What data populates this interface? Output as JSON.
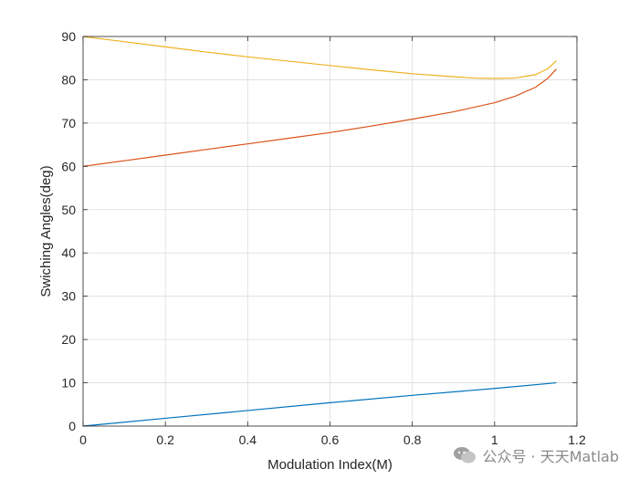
{
  "chart_data": {
    "type": "line",
    "title": "",
    "xlabel": "Modulation Index(M)",
    "ylabel": "Swiching Angles(deg)",
    "xlim": [
      0,
      1.2
    ],
    "ylim": [
      0,
      90
    ],
    "xticks": [
      0,
      0.2,
      0.4,
      0.6,
      0.8,
      1,
      1.2
    ],
    "xtick_labels": [
      "0",
      "0.2",
      "0.4",
      "0.6",
      "0.8",
      "1",
      "1.2"
    ],
    "yticks": [
      0,
      10,
      20,
      30,
      40,
      50,
      60,
      70,
      80,
      90
    ],
    "ytick_labels": [
      "0",
      "10",
      "20",
      "30",
      "40",
      "50",
      "60",
      "70",
      "80",
      "90"
    ],
    "grid": true,
    "colors": [
      "#0072BD",
      "#D95319",
      "#EDB120"
    ],
    "series": [
      {
        "x": [
          0,
          0.2,
          0.4,
          0.6,
          0.8,
          1.0,
          1.15
        ],
        "values": [
          0,
          1.8,
          3.6,
          5.4,
          7.1,
          8.7,
          10.0
        ]
      },
      {
        "x": [
          0,
          0.1,
          0.2,
          0.3,
          0.4,
          0.5,
          0.6,
          0.7,
          0.8,
          0.9,
          1.0,
          1.05,
          1.1,
          1.13,
          1.15
        ],
        "values": [
          60,
          61.3,
          62.6,
          63.9,
          65.2,
          66.5,
          67.8,
          69.3,
          70.9,
          72.6,
          74.7,
          76.2,
          78.3,
          80.4,
          82.5
        ]
      },
      {
        "x": [
          0,
          0.1,
          0.2,
          0.3,
          0.4,
          0.5,
          0.6,
          0.7,
          0.8,
          0.9,
          0.95,
          1.0,
          1.05,
          1.1,
          1.13,
          1.15
        ],
        "values": [
          90,
          88.8,
          87.6,
          86.4,
          85.3,
          84.3,
          83.3,
          82.3,
          81.4,
          80.7,
          80.4,
          80.3,
          80.4,
          81.2,
          82.6,
          84.4
        ]
      }
    ]
  },
  "watermark": {
    "icon": "wechat-icon",
    "text": "公众号 · 天天Matlab"
  }
}
